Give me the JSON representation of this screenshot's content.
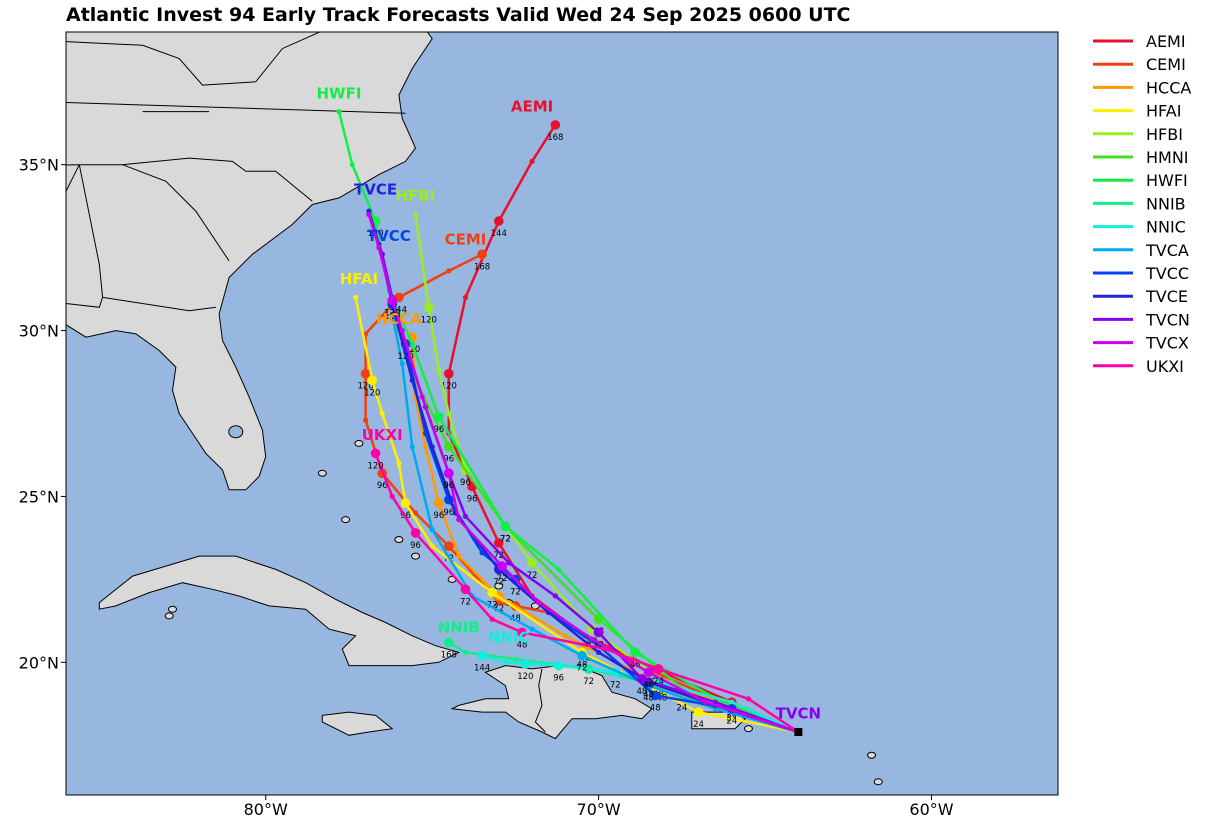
{
  "title": "Atlantic Invest 94 Early Track Forecasts Valid Wed 24 Sep 2025 0600 UTC",
  "colors": {
    "ocean": "#97b7e0",
    "land": "#d9d9d9",
    "border": "#000000"
  },
  "axes": {
    "lon_range": [
      -86,
      -56.2
    ],
    "lat_range": [
      16,
      39
    ],
    "x_ticks": [
      {
        "lon": -80,
        "label": "80°W"
      },
      {
        "lon": -70,
        "label": "70°W"
      },
      {
        "lon": -60,
        "label": "60°W"
      }
    ],
    "y_ticks": [
      {
        "lat": 20,
        "label": "20°N"
      },
      {
        "lat": 25,
        "label": "25°N"
      },
      {
        "lat": 30,
        "label": "30°N"
      },
      {
        "lat": 35,
        "label": "35°N"
      }
    ],
    "grid": false,
    "legend_position": "outside-right"
  },
  "start_point": {
    "lon": -64.0,
    "lat": 17.9
  },
  "models": [
    {
      "name": "AEMI",
      "color": "#e8102d",
      "track": [
        [
          -64.0,
          17.9
        ],
        [
          -66.0,
          18.8
        ],
        [
          -68.3,
          19.8
        ],
        [
          -70.4,
          20.8
        ],
        [
          -72.0,
          22.0
        ],
        [
          -73.0,
          23.6
        ],
        [
          -73.8,
          25.3
        ],
        [
          -74.5,
          26.9
        ],
        [
          -74.5,
          28.7
        ],
        [
          -74.0,
          31.0
        ],
        [
          -73.0,
          33.3
        ],
        [
          -72.0,
          35.1
        ],
        [
          -71.3,
          36.2
        ]
      ],
      "labeled": {
        "24": [
          -66.0,
          18.8
        ],
        "48": [
          -68.3,
          19.8
        ],
        "72": [
          -73.0,
          23.6
        ],
        "96": [
          -73.8,
          25.3
        ],
        "120": [
          -74.5,
          28.7
        ],
        "144": [
          -73.0,
          33.3
        ],
        "168": [
          -71.3,
          36.2
        ]
      }
    },
    {
      "name": "CEMI",
      "color": "#f04010",
      "track": [
        [
          -64.0,
          17.9
        ],
        [
          -66.5,
          18.9
        ],
        [
          -69.0,
          20.0
        ],
        [
          -71.5,
          21.5
        ],
        [
          -73.0,
          21.8
        ],
        [
          -74.5,
          23.5
        ],
        [
          -75.5,
          24.5
        ],
        [
          -76.5,
          25.7
        ],
        [
          -77.0,
          27.3
        ],
        [
          -77.0,
          28.7
        ],
        [
          -77.0,
          29.9
        ],
        [
          -76.0,
          31.0
        ],
        [
          -74.5,
          31.8
        ],
        [
          -73.5,
          32.3
        ]
      ],
      "labeled": {
        "24": [
          -69.0,
          20.0
        ],
        "48": [
          -72.5,
          21.7
        ],
        "72": [
          -74.5,
          23.5
        ],
        "96": [
          -76.5,
          25.7
        ],
        "120": [
          -77.0,
          28.7
        ],
        "144": [
          -76.0,
          31.0
        ],
        "168": [
          -73.5,
          32.3
        ]
      }
    },
    {
      "name": "HCCA",
      "color": "#ff9900",
      "track": [
        [
          -64.0,
          17.9
        ],
        [
          -66.0,
          18.7
        ],
        [
          -68.5,
          19.5
        ],
        [
          -71.0,
          20.8
        ],
        [
          -73.0,
          22.0
        ],
        [
          -74.2,
          23.2
        ],
        [
          -74.8,
          24.8
        ],
        [
          -75.2,
          26.5
        ],
        [
          -75.5,
          28.0
        ],
        [
          -75.6,
          29.8
        ]
      ],
      "labeled": {
        "24": [
          -66.0,
          18.7
        ],
        "48": [
          -70.4,
          20.5
        ],
        "72": [
          -73.0,
          22.0
        ],
        "96": [
          -74.8,
          24.8
        ],
        "120": [
          -75.6,
          29.8
        ]
      }
    },
    {
      "name": "HFAI",
      "color": "#ffee00",
      "track": [
        [
          -64.0,
          17.9
        ],
        [
          -67.0,
          18.5
        ],
        [
          -70.5,
          20.3
        ],
        [
          -73.2,
          22.1
        ],
        [
          -75.0,
          23.5
        ],
        [
          -75.8,
          24.8
        ],
        [
          -76.0,
          26.0
        ],
        [
          -76.5,
          27.5
        ],
        [
          -76.8,
          28.5
        ],
        [
          -77.3,
          31.0
        ]
      ],
      "labeled": {
        "24": [
          -67.0,
          18.5
        ],
        "48": [
          -70.5,
          20.3
        ],
        "72": [
          -73.2,
          22.1
        ],
        "96": [
          -75.8,
          24.8
        ],
        "120": [
          -76.8,
          28.5
        ]
      }
    },
    {
      "name": "HFBI",
      "color": "#99ee22",
      "track": [
        [
          -64.0,
          17.9
        ],
        [
          -67.5,
          19.0
        ],
        [
          -70.2,
          21.0
        ],
        [
          -72.0,
          23.0
        ],
        [
          -73.3,
          24.8
        ],
        [
          -74.0,
          25.8
        ],
        [
          -74.5,
          27.5
        ],
        [
          -74.8,
          28.8
        ],
        [
          -75.1,
          30.7
        ],
        [
          -75.5,
          33.5
        ]
      ],
      "labeled": {
        "24": [
          -67.5,
          19.0
        ],
        "48": [
          -70.2,
          21.0
        ],
        "72": [
          -72.0,
          23.0
        ],
        "96": [
          -74.0,
          25.8
        ],
        "120": [
          -75.1,
          30.7
        ]
      }
    },
    {
      "name": "HMNI",
      "color": "#44dd22",
      "track": [
        [
          -64.0,
          17.9
        ],
        [
          -67.0,
          18.8
        ],
        [
          -70.0,
          21.3
        ],
        [
          -72.8,
          24.1
        ],
        [
          -74.5,
          26.5
        ],
        [
          -75.5,
          28.5
        ],
        [
          -76.0,
          30.0
        ],
        [
          -76.2,
          30.9
        ]
      ],
      "labeled": {
        "48": [
          -70.0,
          21.3
        ],
        "72": [
          -72.8,
          24.1
        ],
        "96": [
          -74.5,
          26.5
        ]
      }
    },
    {
      "name": "HWFI",
      "color": "#11ee44",
      "track": [
        [
          -64.0,
          17.9
        ],
        [
          -66.3,
          18.8
        ],
        [
          -68.9,
          20.3
        ],
        [
          -71.2,
          22.8
        ],
        [
          -72.8,
          24.1
        ],
        [
          -74.8,
          27.4
        ],
        [
          -75.6,
          29.6
        ],
        [
          -76.3,
          31.2
        ],
        [
          -76.7,
          33.3
        ],
        [
          -77.4,
          35.0
        ],
        [
          -77.8,
          36.6
        ]
      ],
      "labeled": {
        "48": [
          -68.9,
          20.3
        ],
        "72": [
          -72.8,
          24.1
        ],
        "96": [
          -74.8,
          27.4
        ],
        "120": [
          -76.7,
          33.3
        ]
      }
    },
    {
      "name": "NNIB",
      "color": "#11ee88",
      "track": [
        [
          -64.0,
          17.9
        ],
        [
          -66.2,
          18.7
        ],
        [
          -68.1,
          19.3
        ],
        [
          -70.3,
          19.8
        ],
        [
          -72.5,
          20.1
        ],
        [
          -74.0,
          20.3
        ],
        [
          -74.5,
          20.6
        ]
      ],
      "labeled": {
        "48": [
          -68.1,
          19.3
        ],
        "72": [
          -70.3,
          19.8
        ],
        "168": [
          -74.5,
          20.6
        ]
      }
    },
    {
      "name": "NNIC",
      "color": "#11eedd",
      "track": [
        [
          -64.0,
          17.9
        ],
        [
          -66.0,
          18.8
        ],
        [
          -68.2,
          19.4
        ],
        [
          -69.5,
          19.7
        ],
        [
          -71.2,
          19.9
        ],
        [
          -72.8,
          20.0
        ],
        [
          -73.5,
          20.2
        ]
      ],
      "labeled": {
        "48": [
          -68.2,
          19.4
        ],
        "72": [
          -69.5,
          19.7
        ],
        "96": [
          -71.2,
          19.9
        ],
        "120": [
          -72.2,
          19.95
        ],
        "144": [
          -73.5,
          20.2
        ]
      }
    },
    {
      "name": "TVCA",
      "color": "#00aaee",
      "track": [
        [
          -64.0,
          17.9
        ],
        [
          -66.5,
          18.6
        ],
        [
          -68.5,
          19.3
        ],
        [
          -70.5,
          20.2
        ],
        [
          -72.0,
          21.0
        ],
        [
          -73.8,
          22.0
        ],
        [
          -75.0,
          24.0
        ],
        [
          -75.6,
          26.5
        ],
        [
          -75.9,
          29.0
        ],
        [
          -76.2,
          30.5
        ]
      ],
      "labeled": {
        "48": [
          -68.5,
          19.3
        ],
        "72": [
          -70.5,
          20.2
        ]
      }
    },
    {
      "name": "TVCC",
      "color": "#0044ee",
      "track": [
        [
          -64.0,
          17.9
        ],
        [
          -66.0,
          18.6
        ],
        [
          -68.3,
          19.0
        ],
        [
          -70.0,
          20.5
        ],
        [
          -71.5,
          21.5
        ],
        [
          -72.5,
          22.5
        ],
        [
          -73.5,
          23.3
        ],
        [
          -74.5,
          24.9
        ],
        [
          -75.2,
          26.9
        ],
        [
          -75.8,
          29.6
        ],
        [
          -76.2,
          31.0
        ],
        [
          -76.5,
          32.3
        ]
      ],
      "labeled": {
        "24": [
          -66.0,
          18.6
        ],
        "48": [
          -68.3,
          19.0
        ],
        "72": [
          -72.5,
          22.5
        ],
        "96": [
          -74.5,
          24.9
        ],
        "120": [
          -75.8,
          29.6
        ]
      }
    },
    {
      "name": "TVCE",
      "color": "#2222dd",
      "track": [
        [
          -64.0,
          17.9
        ],
        [
          -66.5,
          18.7
        ],
        [
          -68.5,
          19.4
        ],
        [
          -70.0,
          20.3
        ],
        [
          -71.5,
          21.5
        ],
        [
          -73.0,
          22.8
        ],
        [
          -74.3,
          24.5
        ],
        [
          -75.0,
          26.5
        ],
        [
          -75.6,
          28.5
        ],
        [
          -76.2,
          30.8
        ],
        [
          -76.6,
          32.6
        ],
        [
          -76.9,
          33.6
        ]
      ],
      "labeled": {
        "48": [
          -68.5,
          19.4
        ],
        "72": [
          -73.0,
          22.8
        ],
        "120": [
          -76.2,
          30.8
        ]
      }
    },
    {
      "name": "TVCN",
      "color": "#8800ee",
      "track": [
        [
          -64.0,
          17.9
        ],
        [
          -66.5,
          18.8
        ],
        [
          -68.7,
          19.5
        ],
        [
          -70.0,
          20.9
        ],
        [
          -71.3,
          22.0
        ],
        [
          -72.7,
          23.0
        ],
        [
          -74.0,
          24.4
        ],
        [
          -74.5,
          25.7
        ],
        [
          -75.2,
          27.7
        ],
        [
          -75.8,
          29.6
        ],
        [
          -76.2,
          30.9
        ],
        [
          -76.5,
          32.3
        ],
        [
          -76.9,
          33.5
        ]
      ],
      "labeled": {
        "48": [
          -68.7,
          19.5
        ],
        "72": [
          -70.0,
          20.9
        ],
        "96": [
          -74.5,
          25.7
        ],
        "120": [
          -76.2,
          30.9
        ]
      }
    },
    {
      "name": "TVCX",
      "color": "#cc00ee",
      "track": [
        [
          -64.0,
          17.9
        ],
        [
          -66.8,
          18.8
        ],
        [
          -68.5,
          19.7
        ],
        [
          -70.2,
          20.7
        ],
        [
          -71.8,
          21.8
        ],
        [
          -72.9,
          22.9
        ],
        [
          -74.2,
          24.3
        ],
        [
          -74.5,
          25.7
        ],
        [
          -75.3,
          28.0
        ],
        [
          -75.9,
          30.0
        ],
        [
          -76.2,
          30.9
        ],
        [
          -76.6,
          32.5
        ],
        [
          -76.9,
          33.5
        ]
      ],
      "labeled": {
        "48": [
          -68.5,
          19.7
        ],
        "72": [
          -72.9,
          22.9
        ],
        "96": [
          -74.5,
          25.7
        ],
        "120": [
          -76.2,
          30.9
        ]
      }
    },
    {
      "name": "UKXI",
      "color": "#ff00aa",
      "track": [
        [
          -64.0,
          17.9
        ],
        [
          -65.5,
          18.9
        ],
        [
          -68.2,
          19.8
        ],
        [
          -69.8,
          20.4
        ],
        [
          -72.3,
          20.9
        ],
        [
          -73.2,
          21.3
        ],
        [
          -74.0,
          22.2
        ],
        [
          -75.5,
          23.9
        ],
        [
          -76.2,
          25.0
        ],
        [
          -76.7,
          26.3
        ]
      ],
      "labeled": {
        "24": [
          -68.2,
          19.8
        ],
        "48": [
          -72.3,
          20.9
        ],
        "72": [
          -74.0,
          22.2
        ],
        "96": [
          -75.5,
          23.9
        ],
        "120": [
          -76.7,
          26.3
        ]
      }
    }
  ],
  "track_labels": [
    {
      "name": "AEMI",
      "lon": -72.0,
      "lat": 36.6
    },
    {
      "name": "CEMI",
      "lon": -74.0,
      "lat": 32.6
    },
    {
      "name": "HCCA",
      "lon": -76.0,
      "lat": 30.2
    },
    {
      "name": "HFAI",
      "lon": -77.2,
      "lat": 31.4
    },
    {
      "name": "HFBI",
      "lon": -75.5,
      "lat": 33.9
    },
    {
      "name": "HWFI",
      "lon": -77.8,
      "lat": 37.0
    },
    {
      "name": "NNIB",
      "lon": -74.2,
      "lat": 20.9
    },
    {
      "name": "NNIC",
      "lon": -72.7,
      "lat": 20.6
    },
    {
      "name": "TVCC",
      "lon": -76.3,
      "lat": 32.7
    },
    {
      "name": "TVCE",
      "lon": -76.7,
      "lat": 34.1
    },
    {
      "name": "TVCN",
      "lon": -64.0,
      "lat": 18.3
    },
    {
      "name": "UKXI",
      "lon": -76.5,
      "lat": 26.7
    }
  ],
  "legend": [
    "AEMI",
    "CEMI",
    "HCCA",
    "HFAI",
    "HFBI",
    "HMNI",
    "HWFI",
    "NNIB",
    "NNIC",
    "TVCA",
    "TVCC",
    "TVCE",
    "TVCN",
    "TVCX",
    "UKXI"
  ]
}
